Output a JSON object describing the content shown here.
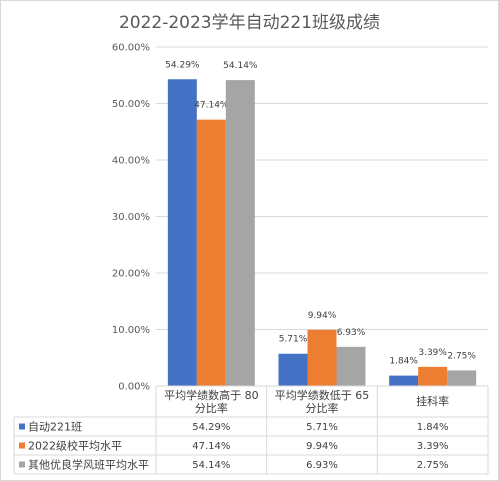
{
  "chart_data": {
    "type": "bar",
    "title": "2022-2023学年自动221班级成绩",
    "categories": [
      [
        "平均学绩数高于 80",
        "分比率"
      ],
      [
        "平均学绩数低于 65",
        "分比率"
      ],
      [
        "挂科率"
      ]
    ],
    "series": [
      {
        "name": "自动221班",
        "color": "#4472c4",
        "values": [
          54.29,
          5.71,
          1.84
        ],
        "labels": [
          "54.29%",
          "5.71%",
          "1.84%"
        ]
      },
      {
        "name": "2022级校平均水平",
        "color": "#ed7d31",
        "values": [
          47.14,
          9.94,
          3.39
        ],
        "labels": [
          "47.14%",
          "9.94%",
          "3.39%"
        ]
      },
      {
        "name": "其他优良学风班平均水平",
        "color": "#a5a5a5",
        "values": [
          54.14,
          6.93,
          2.75
        ],
        "labels": [
          "54.14%",
          "6.93%",
          "2.75%"
        ]
      }
    ],
    "ylim": [
      0,
      60
    ],
    "yticks": [
      "0.00%",
      "10.00%",
      "20.00%",
      "30.00%",
      "40.00%",
      "50.00%",
      "60.00%"
    ],
    "grid": true,
    "legend": "data-table"
  }
}
